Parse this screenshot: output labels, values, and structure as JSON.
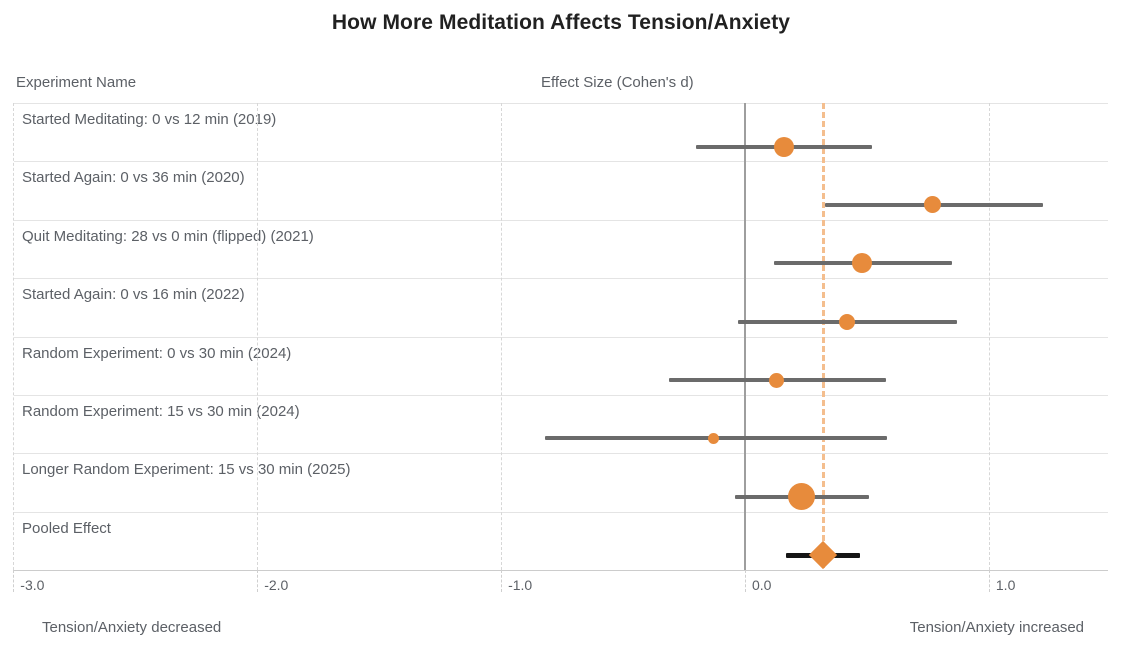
{
  "title": "How More Meditation Affects Tension/Anxiety",
  "columns": {
    "left_header": "Experiment Name",
    "right_header": "Effect Size (Cohen's d)"
  },
  "footer": {
    "left": "Tension/Anxiety decreased",
    "right": "Tension/Anxiety increased"
  },
  "colors": {
    "marker_orange": "#e78b3c",
    "pooled_dashed_line": "#f4be8e",
    "ci_gray": "#6b6b6b",
    "pooled_ci_black": "#151515",
    "zero_line_gray": "#9e9e9e",
    "grid_gray": "#d7d7d7",
    "text_gray": "#5c6066"
  },
  "chart_data": {
    "type": "scatter",
    "subtype": "forest-plot",
    "title": "How More Meditation Affects Tension/Anxiety",
    "xlabel": "Effect Size (Cohen's d)",
    "ylabel": "Experiment Name",
    "xlim": [
      -3.0,
      1.5
    ],
    "x_ticks": [
      {
        "value": -3.0,
        "label": "-3.0"
      },
      {
        "value": -2.0,
        "label": "-2.0"
      },
      {
        "value": -1.0,
        "label": "-1.0"
      },
      {
        "value": 0.0,
        "label": "0.0"
      },
      {
        "value": 1.0,
        "label": "1.0"
      }
    ],
    "zero_reference_line": 0.0,
    "pooled_reference_line": 0.32,
    "grid": true,
    "studies": [
      {
        "label": "Started Meditating: 0 vs 12 min (2019)",
        "effect": 0.16,
        "ci_low": -0.2,
        "ci_high": 0.52,
        "marker": "circle",
        "marker_size": 20
      },
      {
        "label": "Started Again: 0 vs 36 min (2020)",
        "effect": 0.77,
        "ci_low": 0.33,
        "ci_high": 1.22,
        "marker": "circle",
        "marker_size": 17
      },
      {
        "label": "Quit Meditating: 28 vs 0 min (flipped) (2021)",
        "effect": 0.48,
        "ci_low": 0.12,
        "ci_high": 0.85,
        "marker": "circle",
        "marker_size": 20
      },
      {
        "label": "Started Again: 0 vs 16 min (2022)",
        "effect": 0.42,
        "ci_low": -0.03,
        "ci_high": 0.87,
        "marker": "circle",
        "marker_size": 16
      },
      {
        "label": "Random Experiment: 0 vs 30 min (2024)",
        "effect": 0.13,
        "ci_low": -0.31,
        "ci_high": 0.58,
        "marker": "circle",
        "marker_size": 15
      },
      {
        "label": "Random Experiment: 15 vs 30 min (2024)",
        "effect": -0.13,
        "ci_low": -0.82,
        "ci_high": 0.58,
        "marker": "circle",
        "marker_size": 11
      },
      {
        "label": "Longer Random Experiment: 15 vs 30 min (2025)",
        "effect": 0.23,
        "ci_low": -0.04,
        "ci_high": 0.51,
        "marker": "circle",
        "marker_size": 27
      },
      {
        "label": "Pooled Effect",
        "effect": 0.32,
        "ci_low": 0.17,
        "ci_high": 0.47,
        "marker": "diamond",
        "marker_size": 20
      }
    ],
    "annotations": {
      "left_direction": "Tension/Anxiety decreased",
      "right_direction": "Tension/Anxiety increased"
    }
  }
}
